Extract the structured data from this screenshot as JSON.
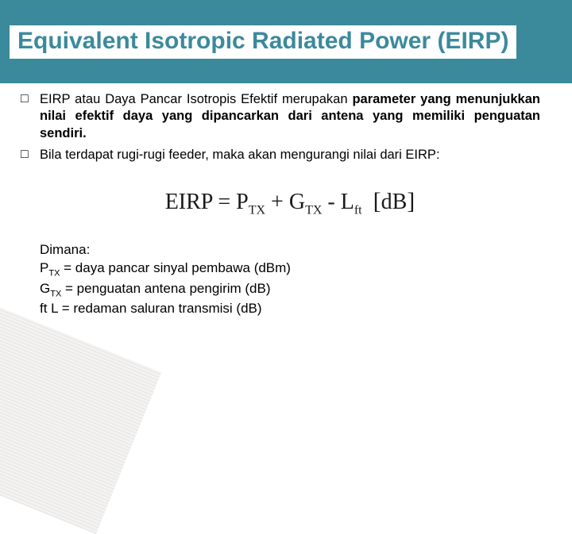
{
  "title": "Equivalent Isotropic Radiated Power (EIRP)",
  "bullet1_pre": "EIRP atau Daya Pancar Isotropis Efektif merupakan ",
  "bullet1_bold": "parameter yang menunjukkan nilai efektif daya yang dipancarkan dari antena yang memiliki penguatan sendiri.",
  "bullet2": "Bila terdapat rugi-rugi feeder, maka akan mengurangi nilai dari EIRP:",
  "eq": {
    "lhs": "EIRP",
    "eq_sign": " = ",
    "t1": "P",
    "t1_sub": "TX",
    "plus": " + ",
    "t2": "G",
    "t2_sub": "TX",
    "minus": " - ",
    "t3": "L",
    "t3_sub": "ft",
    "space": "  ",
    "lb": "[",
    "unit": "dB",
    "rb": "]"
  },
  "defs_header": "Dimana:",
  "def1a": "P",
  "def1sub": "TX",
  "def1b": " = daya pancar sinyal pembawa (dBm)",
  "def2a": "G",
  "def2sub": "TX",
  "def2b": " = penguatan antena pengirim (dB)",
  "def3a": "ft L",
  "def3b": " = redaman saluran transmisi (dB)",
  "bullet_glyph": "□",
  "colors": {
    "title_bg": "#3b8a9b",
    "title_fg": "#3b8a9b",
    "page_bg": "#ffffff",
    "text": "#000000"
  }
}
